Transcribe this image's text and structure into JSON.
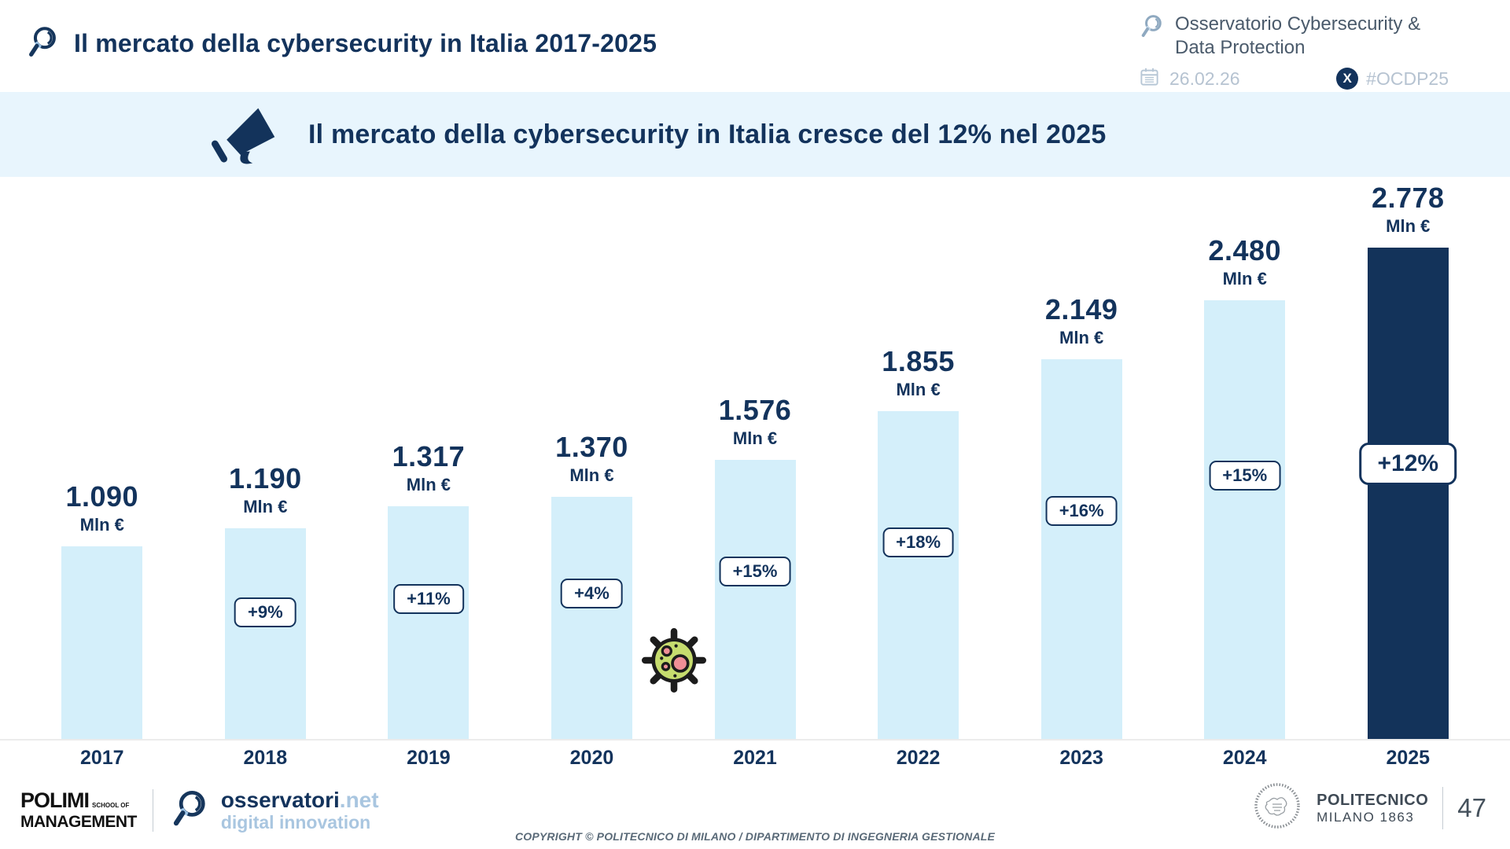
{
  "header": {
    "title": "Il mercato della cybersecurity in Italia 2017-2025",
    "observatory": "Osservatorio Cybersecurity & Data Protection",
    "date": "26.02.26",
    "hashtag": "#OCDP25",
    "x_glyph": "X"
  },
  "banner": {
    "text": "Il mercato della cybersecurity in Italia cresce del 12% nel 2025"
  },
  "chart_data": {
    "type": "bar",
    "title": "Il mercato della cybersecurity in Italia 2017-2025",
    "unit": "Mln €",
    "categories": [
      "2017",
      "2018",
      "2019",
      "2020",
      "2021",
      "2022",
      "2023",
      "2024",
      "2025"
    ],
    "values": [
      1090,
      1190,
      1317,
      1370,
      1576,
      1855,
      2149,
      2480,
      2778
    ],
    "value_labels": [
      "1.090",
      "1.190",
      "1.317",
      "1.370",
      "1.576",
      "1.855",
      "2.149",
      "2.480",
      "2.778"
    ],
    "growth_labels": [
      null,
      "+9%",
      "+11%",
      "+4%",
      "+15%",
      "+18%",
      "+16%",
      "+15%",
      "+12%"
    ],
    "highlight_index": 8,
    "ylim": [
      0,
      2778
    ],
    "grid": false,
    "legend": false,
    "bar_color_default": "#d4effa",
    "bar_color_highlight": "#13335a",
    "annotation": "virus-icon between 2020 and 2021 bars"
  },
  "icons": {
    "title_logo": "magnifier",
    "observatory_logo": "magnifier",
    "date_icon": "calendar",
    "social_icon": "x-logo",
    "banner_icon": "megaphone",
    "chart_annotation_icon": "virus",
    "footer_logo_1": "polimi-school-of-management",
    "footer_logo_2": "osservatori-net-magnifier",
    "footer_logo_3": "politecnico-milano-seal"
  },
  "colors": {
    "navy": "#13335c",
    "light_blue_bar": "#d4effa",
    "banner_bg": "#e8f5fd",
    "muted_blue_gray": "#b6c3d1"
  },
  "footer": {
    "polimi": {
      "line1": "POLIMI",
      "line1_small": "SCHOOL OF",
      "line2": "MANAGEMENT"
    },
    "osservatori": {
      "brand": "osservatori",
      "domain": ".net",
      "tagline": "digital innovation"
    },
    "copyright": "COPYRIGHT © POLITECNICO DI MILANO / DIPARTIMENTO DI INGEGNERIA GESTIONALE",
    "politecnico": {
      "line1": "POLITECNICO",
      "line2": "MILANO 1863"
    },
    "page_number": "47"
  }
}
